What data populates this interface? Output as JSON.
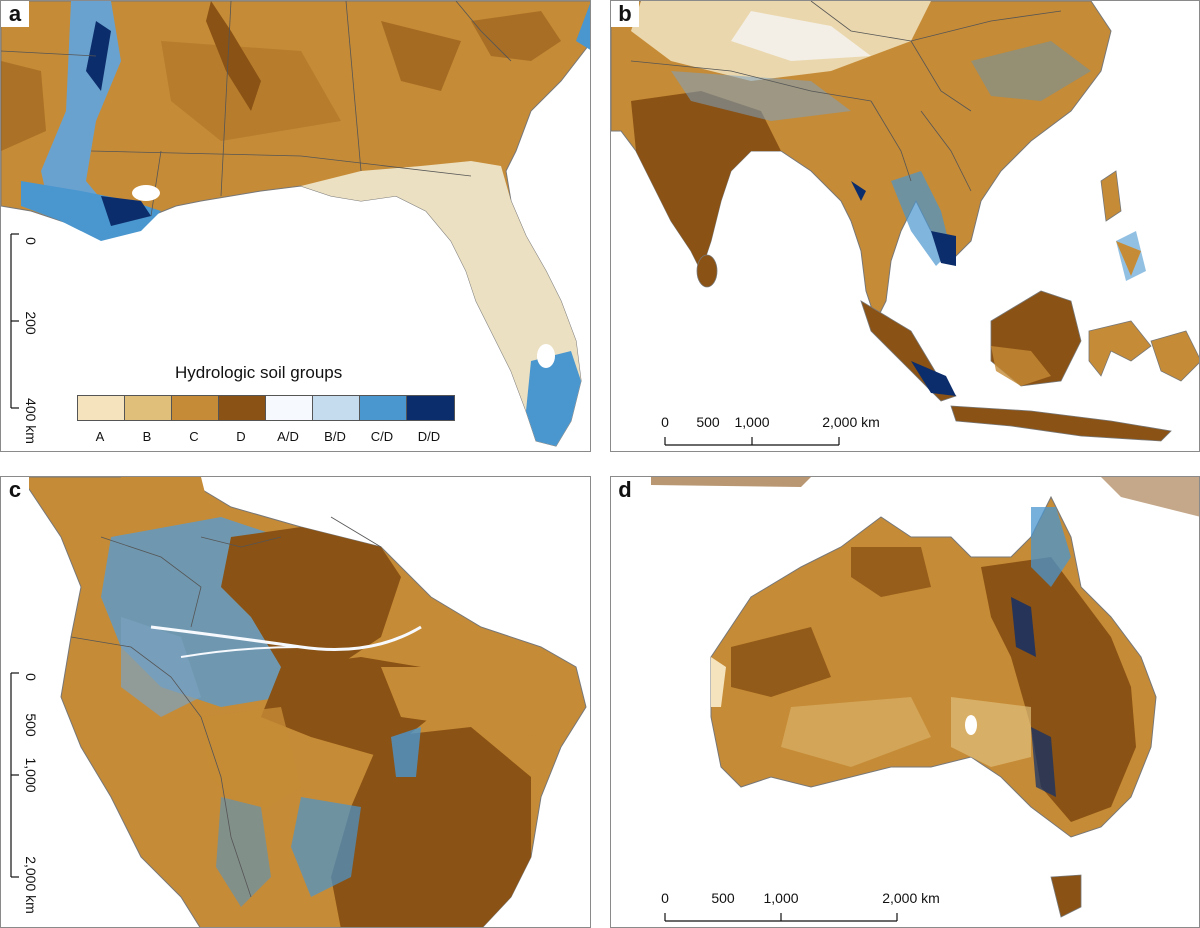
{
  "panels": {
    "a": {
      "label": "a"
    },
    "b": {
      "label": "b"
    },
    "c": {
      "label": "c"
    },
    "d": {
      "label": "d"
    }
  },
  "legend": {
    "title": "Hydrologic soil groups",
    "items": [
      {
        "label": "A",
        "color": "#f4e3bd"
      },
      {
        "label": "B",
        "color": "#dfbf7a"
      },
      {
        "label": "C",
        "color": "#c68b36"
      },
      {
        "label": "D",
        "color": "#8a5214"
      },
      {
        "label": "A/D",
        "color": "#f6f9fd"
      },
      {
        "label": "B/D",
        "color": "#c5dcef"
      },
      {
        "label": "C/D",
        "color": "#4a96cf"
      },
      {
        "label": "D/D",
        "color": "#0c2d6b"
      }
    ]
  },
  "scalebars": {
    "a": {
      "ticks": [
        "0",
        "200",
        "400 km"
      ]
    },
    "b": {
      "ticks": [
        "0",
        "500",
        "1,000",
        "2,000 km"
      ]
    },
    "c": {
      "ticks": [
        "0",
        "500",
        "1,000",
        "2,000 km"
      ]
    },
    "d": {
      "ticks": [
        "0",
        "500",
        "1,000",
        "2,000 km"
      ]
    }
  },
  "colors": {
    "background": "#ffffff",
    "border": "#8a8a8a",
    "boundary": "#555555"
  }
}
